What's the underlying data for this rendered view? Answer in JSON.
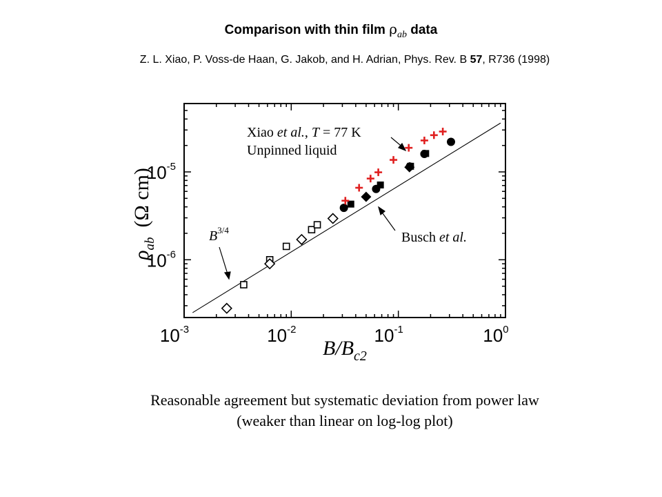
{
  "slide": {
    "title_text": "Comparison with thin film ",
    "title_rho": "ρ",
    "title_sub": "ab",
    "title_tail": " data",
    "citation_authors": "Z. L. Xiao, P. Voss-de Haan, G. Jakob, and H. Adrian, Phys. Rev. B ",
    "citation_volume": "57",
    "citation_tail": ", R736 (1998)",
    "caption_line1": "Reasonable agreement but systematic deviation from power law",
    "caption_line2": "(weaker than linear on log-log plot)"
  },
  "chart_data": {
    "type": "scatter",
    "x_scale": "log",
    "y_scale": "log",
    "xlim": [
      0.001,
      1
    ],
    "ylim": [
      2.2e-07,
      6e-05
    ],
    "x_ticks": [
      {
        "value": 0.001,
        "base": "10",
        "exp": "-3"
      },
      {
        "value": 0.01,
        "base": "10",
        "exp": "-2"
      },
      {
        "value": 0.1,
        "base": "10",
        "exp": "-1"
      },
      {
        "value": 1,
        "base": "10",
        "exp": "0"
      }
    ],
    "y_ticks": [
      {
        "value": 1e-06,
        "base": "10",
        "exp": "-6"
      },
      {
        "value": 1e-05,
        "base": "10",
        "exp": "-5"
      }
    ],
    "xlabel": {
      "main": "B/B",
      "sub": "c2"
    },
    "ylabel": {
      "main": "ρ",
      "sub": "ab",
      "units": "(Ω cm)"
    },
    "annotations": {
      "xiao_line1_a": "Xiao ",
      "xiao_line1_b": "et al.",
      "xiao_line1_c": ", ",
      "xiao_line1_d": "T",
      "xiao_line1_e": " = 77 K",
      "xiao_line2": "Unpinned liquid",
      "busch_a": "Busch ",
      "busch_b": "et al.",
      "power_base": "B",
      "power_exp": "3/4"
    },
    "fit_line": {
      "label": "power law",
      "x": [
        0.0012,
        0.9
      ],
      "y": [
        2.5e-07,
        3.6e-05
      ]
    },
    "series": [
      {
        "marker": "open-square",
        "color": "#000000",
        "x": [
          0.0036,
          0.0063,
          0.009,
          0.0155,
          0.0175
        ],
        "y": [
          5.2e-07,
          1e-06,
          1.42e-06,
          2.2e-06,
          2.5e-06
        ]
      },
      {
        "marker": "open-diamond",
        "color": "#000000",
        "x": [
          0.0025,
          0.0063,
          0.0125,
          0.0245
        ],
        "y": [
          2.8e-07,
          9e-07,
          1.7e-06,
          2.95e-06
        ]
      },
      {
        "marker": "filled-circle",
        "color": "#000000",
        "x": [
          0.031,
          0.062,
          0.128,
          0.175,
          0.31
        ],
        "y": [
          3.9e-06,
          6.4e-06,
          1.15e-05,
          1.6e-05,
          2.2e-05
        ]
      },
      {
        "marker": "filled-square",
        "color": "#000000",
        "x": [
          0.036,
          0.068,
          0.13,
          0.18
        ],
        "y": [
          4.3e-06,
          7.1e-06,
          1.16e-05,
          1.62e-05
        ]
      },
      {
        "marker": "filled-diamond",
        "color": "#000000",
        "x": [
          0.05,
          0.127
        ],
        "y": [
          5.2e-06,
          1.13e-05
        ]
      },
      {
        "marker": "cross",
        "color": "#e02020",
        "x": [
          0.032,
          0.043,
          0.055,
          0.065,
          0.09,
          0.125,
          0.175,
          0.215,
          0.26
        ],
        "y": [
          4.7e-06,
          6.6e-06,
          8.4e-06,
          9.9e-06,
          1.37e-05,
          1.88e-05,
          2.28e-05,
          2.62e-05,
          2.88e-05
        ]
      }
    ]
  }
}
